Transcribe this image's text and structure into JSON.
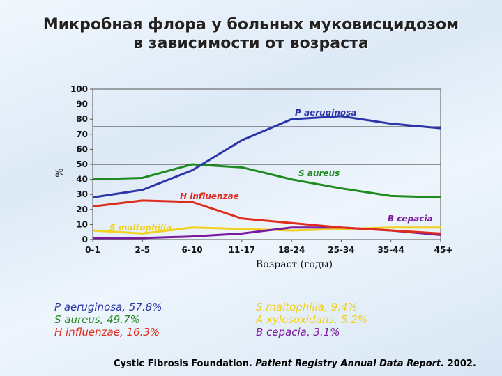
{
  "title": "Микробная флора у больных муковисцидозом в зависимости от возраста",
  "colors": {
    "p_aeruginosa": "#2b35a8",
    "s_aureus": "#1f8a1f",
    "h_influenzae": "#e02a1c",
    "s_maltophilia": "#f0d020",
    "b_cepacia": "#7a1aa0"
  },
  "chart_data": {
    "type": "line",
    "ylabel": "%",
    "xlabel": "Возраст (годы)",
    "categories": [
      "0-1",
      "2-5",
      "6-10",
      "11-17",
      "18-24",
      "25-34",
      "35-44",
      "45+"
    ],
    "yticks": [
      0,
      10,
      20,
      30,
      40,
      50,
      60,
      70,
      80,
      90,
      100
    ],
    "ylim": [
      0,
      100
    ],
    "grid": "horizontal lines at 50 and 75",
    "series": [
      {
        "name": "P aeruginosa",
        "key": "p_aeruginosa",
        "values": [
          28,
          33,
          46,
          66,
          80,
          82,
          77,
          74
        ]
      },
      {
        "name": "S aureus",
        "key": "s_aureus",
        "values": [
          40,
          41,
          50,
          48,
          40,
          34,
          29,
          28
        ]
      },
      {
        "name": "H influenzae",
        "key": "h_influenzae",
        "values": [
          22,
          26,
          25,
          14,
          11,
          8,
          6,
          4
        ]
      },
      {
        "name": "S maltophilia",
        "key": "s_maltophilia",
        "values": [
          6,
          4,
          8,
          7,
          6,
          7,
          8,
          8
        ]
      },
      {
        "name": "B cepacia",
        "key": "b_cepacia",
        "values": [
          1,
          1,
          2,
          4,
          8,
          8,
          6,
          3
        ]
      }
    ]
  },
  "stats": {
    "left": [
      {
        "text": "P aeruginosa, 57.8%",
        "key": "p_aeruginosa"
      },
      {
        "text": "S aureus, 49.7%",
        "key": "s_aureus"
      },
      {
        "text": "H influenzae, 16.3%",
        "key": "h_influenzae"
      }
    ],
    "right": [
      {
        "text": "S maltophilia, 9.4%",
        "key": "s_maltophilia"
      },
      {
        "text": "A xylosoxidans, 5.2%",
        "key": "s_maltophilia"
      },
      {
        "text": "B cepacia, 3.1%",
        "key": "b_cepacia"
      }
    ]
  },
  "source": {
    "org": "Cystic Fibrosis Foundation.",
    "report": "Patient Registry Annual Data Report.",
    "year": "2002."
  }
}
